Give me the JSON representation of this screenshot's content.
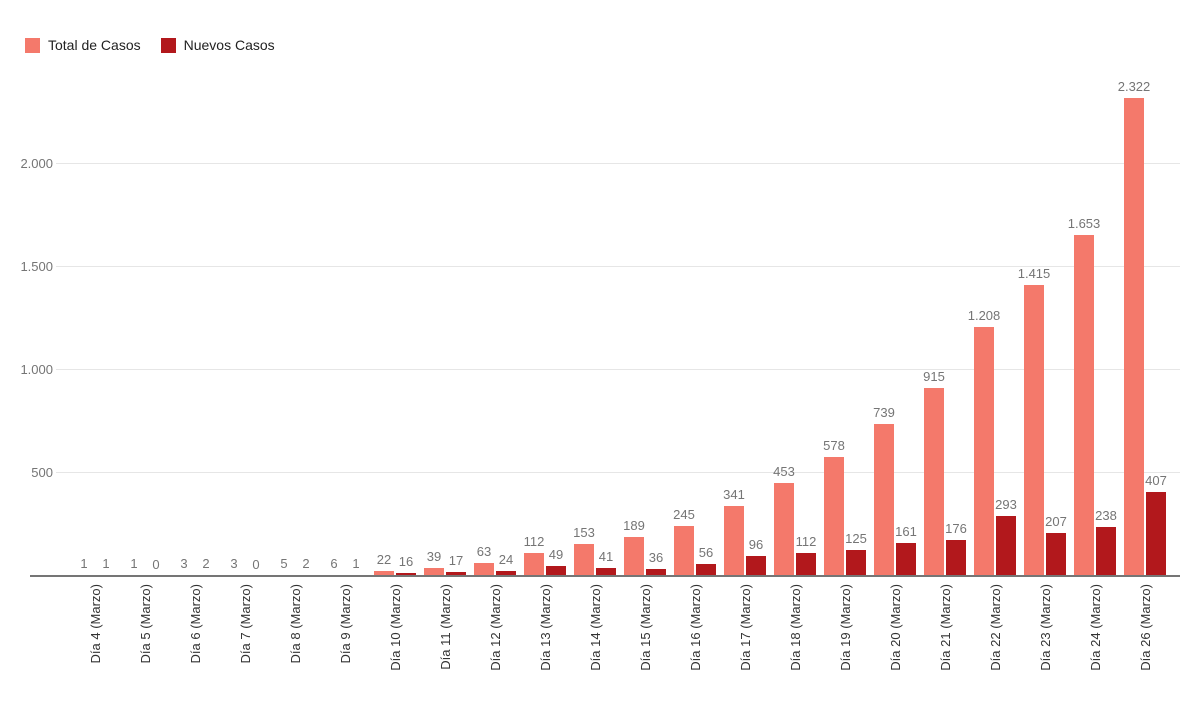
{
  "legend": [
    {
      "label": "Total de Casos",
      "color": "#F4796B"
    },
    {
      "label": "Nuevos Casos",
      "color": "#B2181C"
    }
  ],
  "chart_data": {
    "type": "bar",
    "title": "",
    "xlabel": "",
    "ylabel": "",
    "categories": [
      "Día 4 (Marzo)",
      "Día 5 (Marzo)",
      "Día 6 (Marzo)",
      "Día 7 (Marzo)",
      "Día 8 (Marzo)",
      "Día 9 (Marzo)",
      "Día 10 (Marzo)",
      "Día 11 (Marzo)",
      "Día 12 (Marzo)",
      "Día 13 (Marzo)",
      "Día 14 (Marzo)",
      "Día 15 (Marzo)",
      "Día 16 (Marzo)",
      "Día 17 (Marzo)",
      "Día 18 (Marzo)",
      "Día 19 (Marzo)",
      "Día 20 (Marzo)",
      "Día 21 (Marzo)",
      "Día 22 (Marzo)",
      "Día 23 (Marzo)",
      "Día 24 (Marzo)",
      "Día 26 (Marzo)"
    ],
    "series": [
      {
        "name": "Total de Casos",
        "color": "#F4796B",
        "values": [
          1,
          1,
          3,
          3,
          5,
          6,
          22,
          39,
          63,
          112,
          153,
          189,
          245,
          341,
          453,
          578,
          739,
          915,
          1208,
          1415,
          1653,
          2322
        ]
      },
      {
        "name": "Nuevos Casos",
        "color": "#B2181C",
        "values": [
          1,
          0,
          2,
          0,
          2,
          1,
          16,
          17,
          24,
          49,
          41,
          36,
          56,
          96,
          112,
          125,
          161,
          176,
          293,
          207,
          238,
          407
        ]
      }
    ],
    "y_ticks": [
      500,
      1000,
      1500,
      2000
    ],
    "y_tick_labels": [
      "500",
      "1.000",
      "1.500",
      "2.000"
    ],
    "ylim": [
      0,
      2400
    ],
    "grid": true,
    "legend_position": "top-left",
    "grid_color": "#E6E6E6",
    "axis_color": "#757575",
    "value_label_color": "#757575",
    "number_format": "es (dot thousands separator)"
  }
}
